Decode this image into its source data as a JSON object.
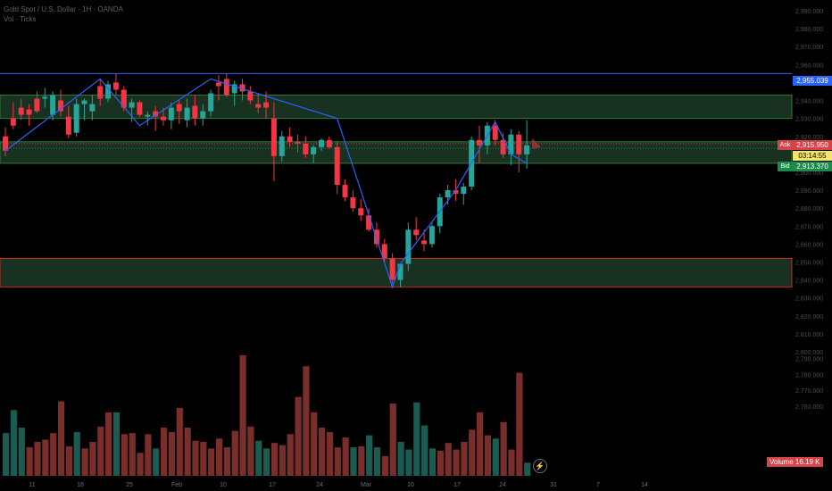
{
  "header": {
    "symbol_line": "Gold Spot / U.S. Dollar · 1H · OANDA",
    "indicator_line": "Vol · Ticks"
  },
  "colors": {
    "up": "#1d6b5f",
    "up_body": "#26a69a",
    "down_body": "#f23645",
    "vol_up": "#1a5c52",
    "vol_down": "#7a2e2c",
    "zigzag": "#2962ff",
    "zone_fill": "#1c3a26",
    "zone_border_green": "#2e7d32",
    "zone_border_red": "#c62828",
    "resistance_line": "#2962ff"
  },
  "price_axis": {
    "labels": [
      "2,990.000",
      "2,980.000",
      "2,970.000",
      "2,960.000",
      "2,950.000",
      "2,940.000",
      "2,930.000",
      "2,920.000",
      "2,910.000",
      "2,900.000",
      "2,890.000",
      "2,880.000",
      "2,870.000",
      "2,860.000",
      "2,850.000",
      "2,840.000",
      "2,830.000",
      "2,820.000",
      "2,810.000",
      "2,800.000",
      "2,790.000",
      "2,780.000",
      "2,770.000",
      "2,760.000"
    ],
    "resistance_label": "2,955.039",
    "ask_label": "Ask",
    "ask_price": "2,915.950",
    "timer": "03:14:55",
    "bid_label": "Bid",
    "bid_price": "2,913.370"
  },
  "time_axis": {
    "labels": [
      "11",
      "18",
      "25",
      "Feb",
      "10",
      "17",
      "24",
      "Mar",
      "10",
      "17",
      "24",
      "31",
      "7",
      "14"
    ]
  },
  "volume_pane": {
    "label": "Volume",
    "value": "16.19 K"
  },
  "chart_data": {
    "type": "candlestick",
    "ylim": [
      2805,
      2992
    ],
    "resistance": 2955.039,
    "zones": [
      {
        "top": 2943,
        "bottom": 2930,
        "border": "green"
      },
      {
        "top": 2917,
        "bottom": 2905,
        "border": "green"
      },
      {
        "top": 2852,
        "bottom": 2836,
        "border": "red"
      }
    ],
    "candles": [
      [
        2920,
        2925,
        2909,
        2912
      ],
      [
        2930,
        2939,
        2924,
        2926
      ],
      [
        2936,
        2941,
        2929,
        2932
      ],
      [
        2935,
        2938,
        2926,
        2932
      ],
      [
        2941,
        2945,
        2933,
        2934
      ],
      [
        2941,
        2947,
        2936,
        2942
      ],
      [
        2932,
        2945,
        2929,
        2943
      ],
      [
        2940,
        2946,
        2931,
        2934
      ],
      [
        2931,
        2937,
        2919,
        2921
      ],
      [
        2922,
        2941,
        2920,
        2938
      ],
      [
        2938,
        2941,
        2929,
        2940
      ],
      [
        2934,
        2943,
        2929,
        2938
      ],
      [
        2948,
        2952,
        2937,
        2941
      ],
      [
        2941,
        2951,
        2939,
        2949
      ],
      [
        2950,
        2955,
        2943,
        2946
      ],
      [
        2946,
        2948,
        2934,
        2936
      ],
      [
        2936,
        2941,
        2928,
        2939
      ],
      [
        2939,
        2940,
        2931,
        2932
      ],
      [
        2931,
        2934,
        2926,
        2932
      ],
      [
        2934,
        2937,
        2923,
        2931
      ],
      [
        2931,
        2936,
        2926,
        2929
      ],
      [
        2929,
        2939,
        2924,
        2936
      ],
      [
        2938,
        2940,
        2927,
        2934
      ],
      [
        2929,
        2941,
        2925,
        2936
      ],
      [
        2937,
        2943,
        2926,
        2930
      ],
      [
        2930,
        2938,
        2926,
        2934
      ],
      [
        2934,
        2946,
        2931,
        2944
      ],
      [
        2950,
        2954,
        2940,
        2948
      ],
      [
        2952,
        2955,
        2942,
        2943
      ],
      [
        2944,
        2951,
        2937,
        2949
      ],
      [
        2949,
        2952,
        2940,
        2945
      ],
      [
        2945,
        2948,
        2938,
        2940
      ],
      [
        2938,
        2944,
        2933,
        2936
      ],
      [
        2939,
        2945,
        2930,
        2936
      ],
      [
        2930,
        2939,
        2895,
        2909
      ],
      [
        2909,
        2923,
        2906,
        2920
      ],
      [
        2920,
        2925,
        2914,
        2917
      ],
      [
        2917,
        2921,
        2911,
        2916
      ],
      [
        2916,
        2920,
        2908,
        2910
      ],
      [
        2910,
        2915,
        2905,
        2914
      ],
      [
        2914,
        2919,
        2912,
        2918
      ],
      [
        2918,
        2920,
        2913,
        2914
      ],
      [
        2914,
        2917,
        2888,
        2893
      ],
      [
        2893,
        2896,
        2884,
        2886
      ],
      [
        2886,
        2890,
        2878,
        2880
      ],
      [
        2880,
        2885,
        2873,
        2876
      ],
      [
        2876,
        2880,
        2867,
        2868
      ],
      [
        2868,
        2872,
        2858,
        2860
      ],
      [
        2860,
        2863,
        2850,
        2852
      ],
      [
        2852,
        2855,
        2838,
        2840
      ],
      [
        2840,
        2848,
        2836,
        2849
      ],
      [
        2849,
        2872,
        2845,
        2868
      ],
      [
        2868,
        2875,
        2862,
        2865
      ],
      [
        2862,
        2868,
        2856,
        2860
      ],
      [
        2860,
        2872,
        2858,
        2870
      ],
      [
        2870,
        2888,
        2866,
        2886
      ],
      [
        2886,
        2893,
        2882,
        2890
      ],
      [
        2890,
        2896,
        2884,
        2888
      ],
      [
        2888,
        2894,
        2882,
        2892
      ],
      [
        2892,
        2920,
        2890,
        2918
      ],
      [
        2918,
        2926,
        2905,
        2915
      ],
      [
        2915,
        2928,
        2910,
        2926
      ],
      [
        2926,
        2929,
        2915,
        2918
      ],
      [
        2918,
        2922,
        2908,
        2910
      ],
      [
        2910,
        2924,
        2904,
        2921
      ],
      [
        2921,
        2923,
        2900,
        2910
      ],
      [
        2910,
        2929,
        2902,
        2915
      ]
    ],
    "volume": [
      [
        39,
        1
      ],
      [
        60,
        1
      ],
      [
        44,
        1
      ],
      [
        26,
        0
      ],
      [
        31,
        0
      ],
      [
        33,
        0
      ],
      [
        39,
        0
      ],
      [
        68,
        0
      ],
      [
        27,
        0
      ],
      [
        40,
        1
      ],
      [
        25,
        0
      ],
      [
        31,
        0
      ],
      [
        45,
        0
      ],
      [
        58,
        0
      ],
      [
        58,
        1
      ],
      [
        38,
        0
      ],
      [
        39,
        0
      ],
      [
        21,
        0
      ],
      [
        38,
        0
      ],
      [
        25,
        1
      ],
      [
        44,
        0
      ],
      [
        40,
        0
      ],
      [
        62,
        0
      ],
      [
        44,
        0
      ],
      [
        32,
        0
      ],
      [
        31,
        0
      ],
      [
        25,
        0
      ],
      [
        34,
        0
      ],
      [
        26,
        0
      ],
      [
        41,
        0
      ],
      [
        110,
        0
      ],
      [
        45,
        0
      ],
      [
        32,
        1
      ],
      [
        25,
        1
      ],
      [
        30,
        0
      ],
      [
        28,
        0
      ],
      [
        38,
        0
      ],
      [
        72,
        0
      ],
      [
        100,
        0
      ],
      [
        58,
        0
      ],
      [
        44,
        0
      ],
      [
        40,
        0
      ],
      [
        26,
        0
      ],
      [
        35,
        0
      ],
      [
        26,
        1
      ],
      [
        27,
        0
      ],
      [
        37,
        1
      ],
      [
        26,
        1
      ],
      [
        18,
        0
      ],
      [
        66,
        0
      ],
      [
        31,
        1
      ],
      [
        24,
        1
      ],
      [
        67,
        1
      ],
      [
        46,
        1
      ],
      [
        25,
        1
      ],
      [
        23,
        0
      ],
      [
        30,
        0
      ],
      [
        24,
        0
      ],
      [
        31,
        0
      ],
      [
        42,
        0
      ],
      [
        58,
        0
      ],
      [
        37,
        0
      ],
      [
        34,
        1
      ],
      [
        49,
        0
      ],
      [
        24,
        0
      ],
      [
        94,
        0
      ],
      [
        12,
        1
      ]
    ],
    "zigzag": [
      [
        0,
        2912
      ],
      [
        12,
        2952
      ],
      [
        17,
        2926
      ],
      [
        26,
        2952
      ],
      [
        42,
        2930
      ],
      [
        49,
        2836
      ],
      [
        50,
        2849
      ],
      [
        57,
        2890
      ],
      [
        62,
        2928
      ],
      [
        64,
        2910
      ],
      [
        66,
        2905
      ]
    ]
  }
}
